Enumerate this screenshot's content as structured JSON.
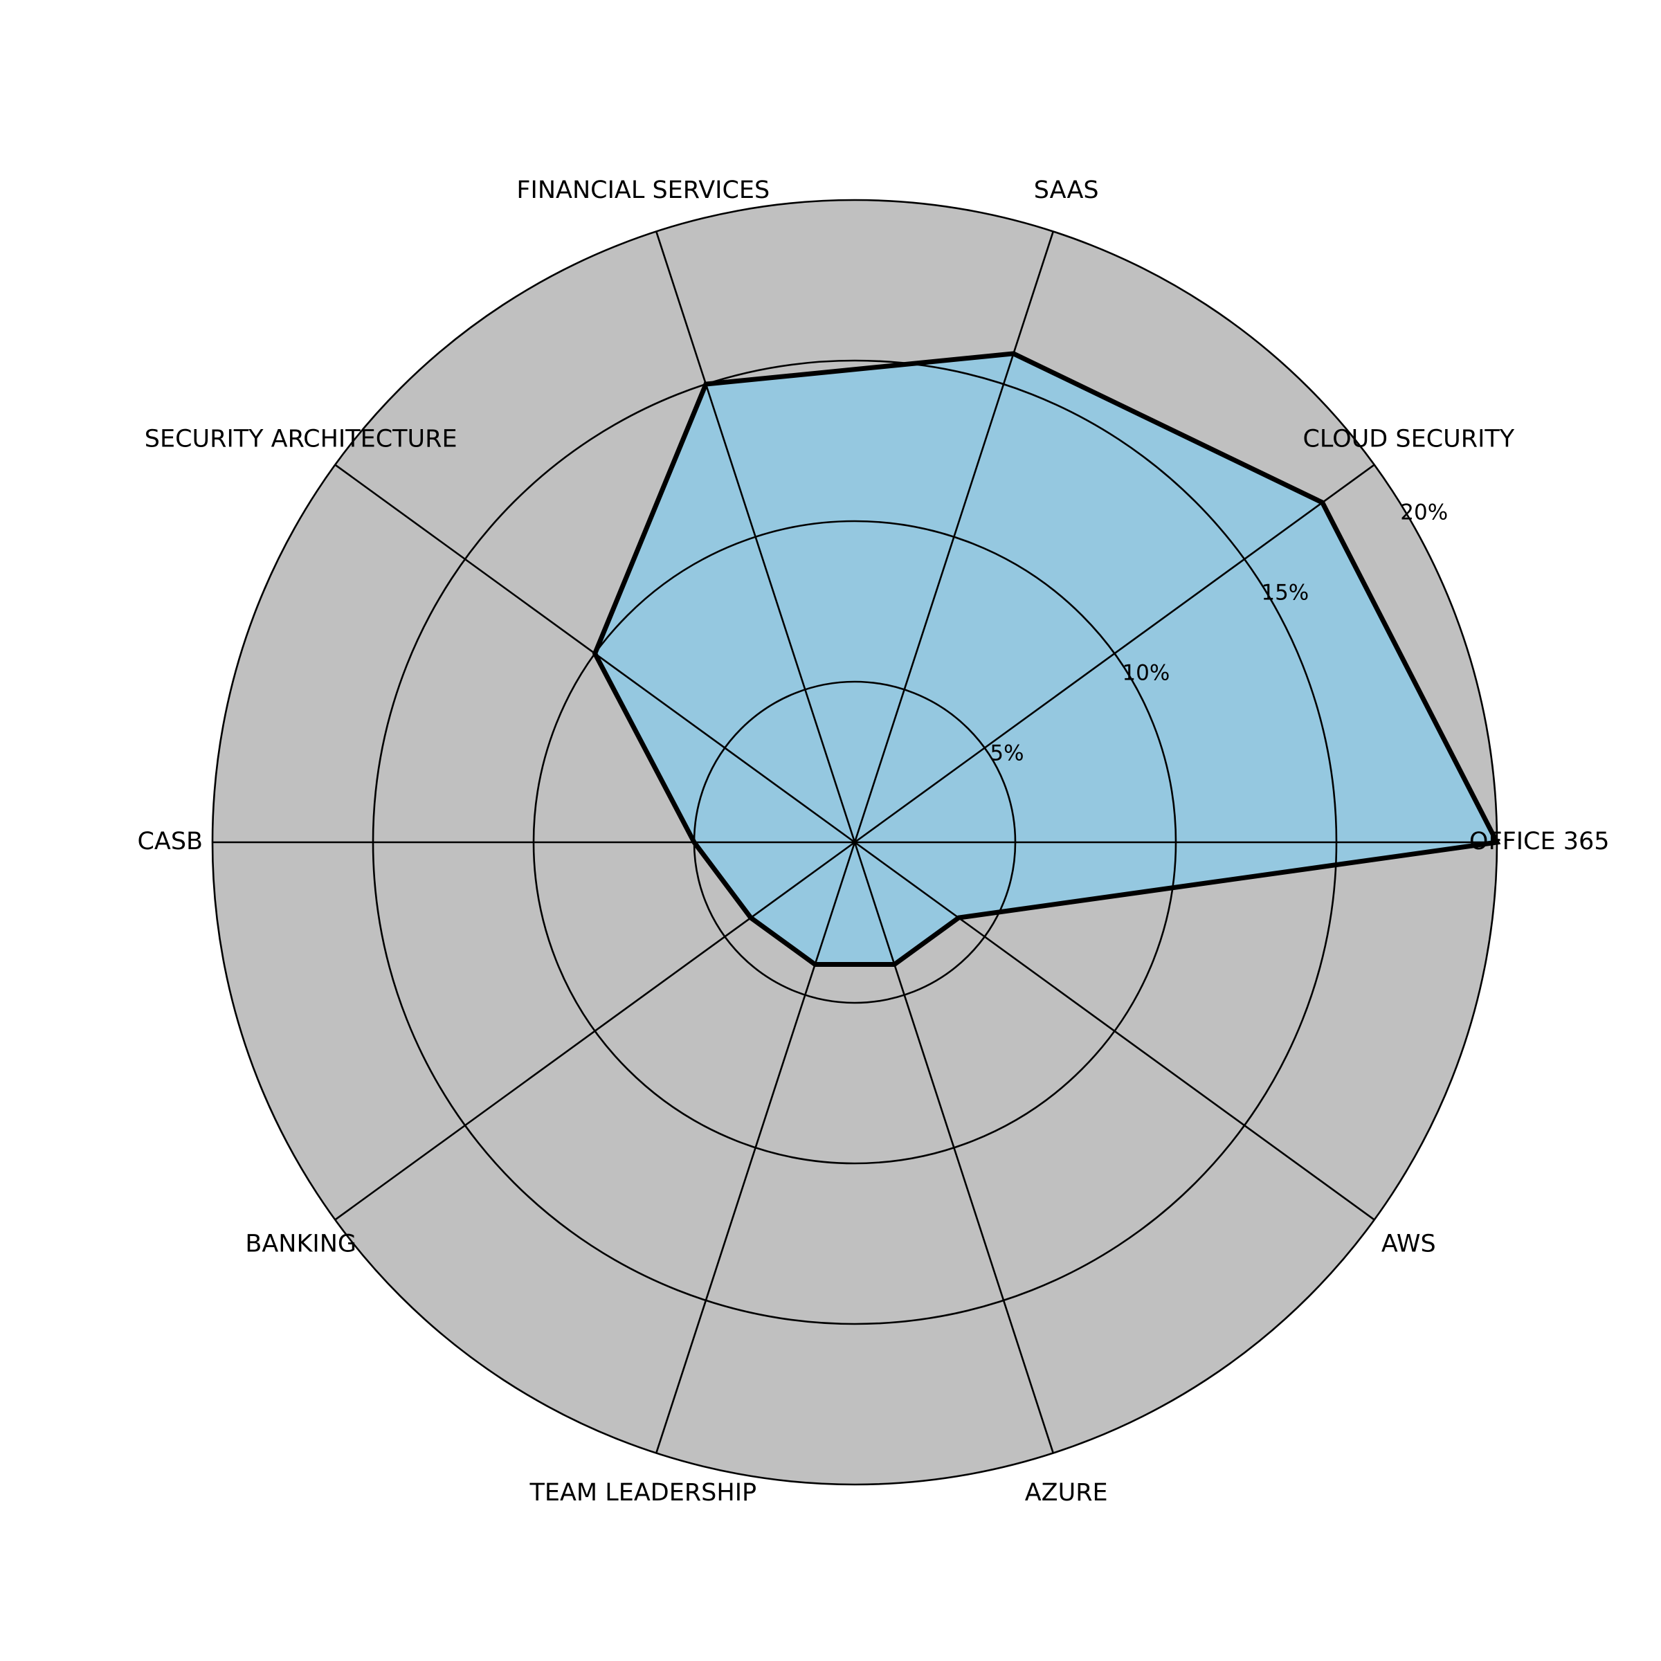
{
  "chart_data": {
    "type": "radar",
    "categories": [
      "OFFICE 365",
      "CLOUD SECURITY",
      "SAAS",
      "FINANCIAL SERVICES",
      "SECURITY ARCHITECTURE",
      "CASB",
      "BANKING",
      "TEAM LEADERSHIP",
      "AZURE",
      "AWS"
    ],
    "values": [
      20,
      18,
      16,
      15,
      10,
      5,
      4,
      4,
      4,
      4
    ],
    "color": "#95c8e0",
    "line_color": "#000000",
    "background": "#c0c0c0",
    "ylim": [
      0,
      20
    ],
    "yticks": [
      {
        "value": 5,
        "label": "5%"
      },
      {
        "value": 10,
        "label": "10%"
      },
      {
        "value": 15,
        "label": "15%"
      },
      {
        "value": 20,
        "label": "20%"
      }
    ],
    "grid": true
  }
}
